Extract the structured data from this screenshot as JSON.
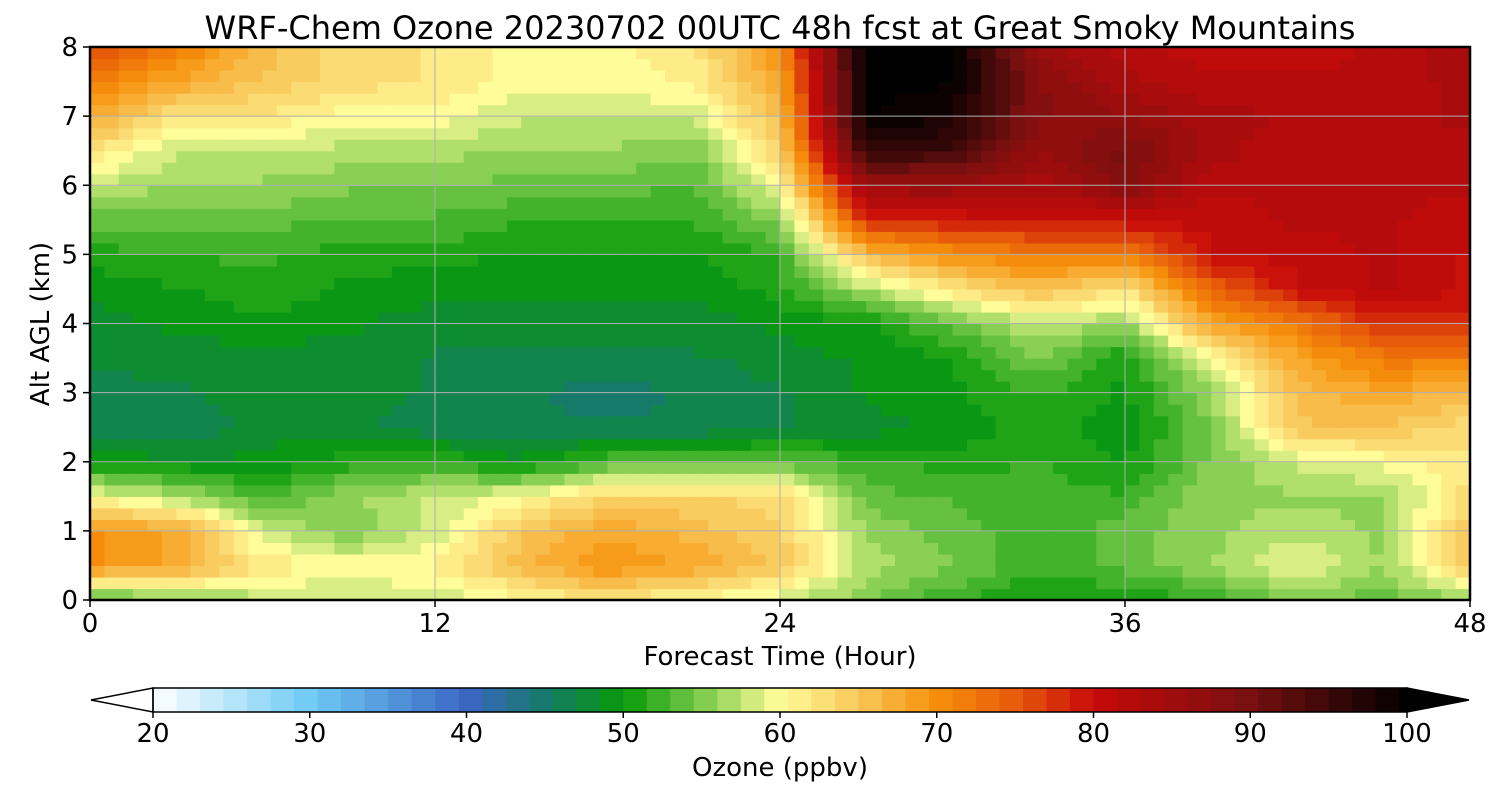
{
  "chart_data": {
    "type": "heatmap",
    "title": "WRF-Chem Ozone  20230702 00UTC 48h fcst at Great Smoky Mountains",
    "xlabel": "Forecast Time (Hour)",
    "ylabel": "Alt AGL (km)",
    "xlim": [
      0,
      48
    ],
    "ylim": [
      0,
      8
    ],
    "x_ticks": [
      0,
      12,
      24,
      36,
      48
    ],
    "y_ticks": [
      0,
      1,
      2,
      3,
      4,
      5,
      6,
      7,
      8
    ],
    "grid": true,
    "colorbar": {
      "label": "Ozone  (ppbv)",
      "min": 20,
      "max": 100,
      "ticks": [
        20,
        30,
        40,
        50,
        60,
        70,
        80,
        90,
        100
      ],
      "extend": "both",
      "stops": [
        {
          "value": 20,
          "color": "#ffffff"
        },
        {
          "value": 30,
          "color": "#6ecbf5"
        },
        {
          "value": 40,
          "color": "#3b66c4"
        },
        {
          "value": 45,
          "color": "#167a6a"
        },
        {
          "value": 50,
          "color": "#089a0a"
        },
        {
          "value": 55,
          "color": "#7ccb4c"
        },
        {
          "value": 60,
          "color": "#fffc9a"
        },
        {
          "value": 65,
          "color": "#f8c75a"
        },
        {
          "value": 70,
          "color": "#f7900a"
        },
        {
          "value": 75,
          "color": "#e65a0a"
        },
        {
          "value": 80,
          "color": "#c80a0a"
        },
        {
          "value": 90,
          "color": "#781010"
        },
        {
          "value": 100,
          "color": "#000000"
        }
      ]
    },
    "hours": [
      0,
      3,
      6,
      9,
      12,
      15,
      18,
      21,
      24,
      27,
      30,
      33,
      36,
      39,
      42,
      45,
      48
    ],
    "altitudes_km": [
      0,
      0.5,
      1,
      1.5,
      2,
      2.5,
      3,
      3.5,
      4,
      4.5,
      5,
      5.5,
      6,
      6.5,
      7,
      7.5,
      8
    ],
    "ozone_ppbv": [
      [
        52,
        55,
        57,
        58,
        58,
        60,
        62,
        60,
        58,
        55,
        52,
        50,
        50,
        52,
        55,
        54,
        56
      ],
      [
        70,
        68,
        62,
        60,
        61,
        66,
        70,
        68,
        65,
        57,
        55,
        52,
        54,
        56,
        60,
        56,
        65
      ],
      [
        70,
        68,
        58,
        55,
        58,
        65,
        68,
        66,
        64,
        56,
        54,
        52,
        54,
        56,
        57,
        56,
        65
      ],
      [
        60,
        57,
        53,
        56,
        58,
        60,
        64,
        64,
        63,
        54,
        53,
        52,
        52,
        56,
        56,
        56,
        63
      ],
      [
        50,
        49,
        49,
        51,
        52,
        49,
        53,
        53,
        54,
        52,
        51,
        52,
        50,
        55,
        58,
        60,
        62
      ],
      [
        46,
        46,
        48,
        48,
        46,
        46,
        46,
        46,
        47,
        48,
        49,
        51,
        49,
        55,
        65,
        65,
        63
      ],
      [
        46,
        47,
        48,
        48,
        47,
        46,
        45,
        46,
        47,
        49,
        50,
        52,
        50,
        56,
        66,
        68,
        66
      ],
      [
        48,
        48,
        48,
        48,
        47,
        47,
        47,
        47,
        48,
        49,
        50,
        55,
        50,
        60,
        68,
        72,
        72
      ],
      [
        48,
        49,
        50,
        49,
        48,
        48,
        48,
        48,
        49,
        50,
        54,
        58,
        56,
        68,
        72,
        78,
        78
      ],
      [
        49,
        50,
        51,
        50,
        49,
        49,
        49,
        49,
        51,
        57,
        62,
        66,
        62,
        74,
        80,
        82,
        80
      ],
      [
        51,
        52,
        52,
        51,
        51,
        50,
        50,
        50,
        52,
        66,
        70,
        72,
        72,
        80,
        81,
        82,
        80
      ],
      [
        54,
        54,
        54,
        53,
        53,
        52,
        52,
        52,
        55,
        78,
        79,
        80,
        80,
        81,
        82,
        82,
        81
      ],
      [
        58,
        56,
        56,
        55,
        55,
        54,
        54,
        53,
        60,
        86,
        86,
        84,
        88,
        82,
        82,
        82,
        82
      ],
      [
        62,
        58,
        58,
        57,
        57,
        56,
        56,
        55,
        64,
        96,
        95,
        86,
        90,
        84,
        82,
        82,
        82
      ],
      [
        68,
        62,
        62,
        60,
        60,
        58,
        58,
        58,
        66,
        100,
        98,
        88,
        86,
        84,
        83,
        82,
        84
      ],
      [
        72,
        68,
        65,
        63,
        62,
        60,
        60,
        61,
        68,
        100,
        100,
        88,
        84,
        82,
        82,
        82,
        84
      ],
      [
        76,
        72,
        66,
        63,
        62,
        60,
        60,
        62,
        70,
        100,
        100,
        86,
        82,
        81,
        81,
        82,
        85
      ]
    ]
  }
}
